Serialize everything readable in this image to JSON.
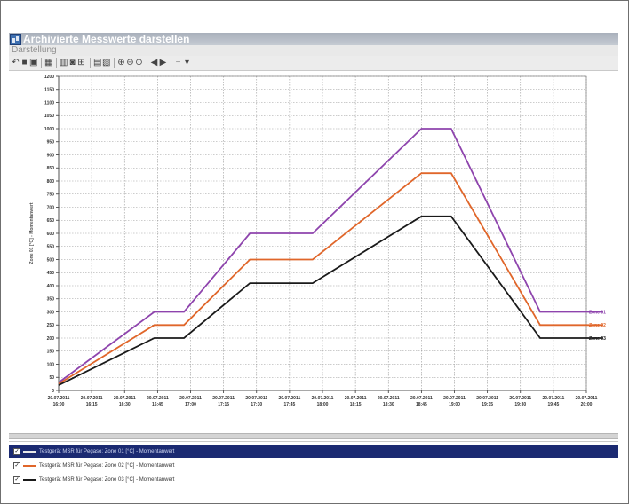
{
  "window": {
    "title": "Archivierte Messwerte darstellen"
  },
  "menu": {
    "items": [
      "Darstellung"
    ]
  },
  "toolbar": {
    "buttons": [
      {
        "icon": "undo-icon"
      },
      {
        "icon": "print-icon"
      },
      {
        "icon": "save-icon"
      },
      {
        "icon": "table-icon"
      },
      {
        "icon": "bar-chart-icon"
      },
      {
        "icon": "options-icon"
      },
      {
        "icon": "ruler-icon"
      },
      {
        "icon": "copy-icon"
      },
      {
        "icon": "columns-icon"
      },
      {
        "icon": "zoom-in-icon"
      },
      {
        "icon": "zoom-out-icon"
      },
      {
        "icon": "zoom-reset-icon"
      },
      {
        "icon": "scroll-left-icon"
      },
      {
        "icon": "scroll-right-icon"
      },
      {
        "icon": "minus-icon"
      },
      {
        "icon": "dropdown-icon"
      }
    ]
  },
  "chart_data": {
    "type": "line",
    "ylabel": "Zone 01 [°C] - Momentanwert",
    "ylim": [
      0,
      1200
    ],
    "yticks": [
      0,
      50,
      100,
      150,
      200,
      250,
      300,
      350,
      400,
      450,
      500,
      550,
      600,
      650,
      700,
      750,
      800,
      850,
      900,
      950,
      1000,
      1050,
      1100,
      1150,
      1200
    ],
    "x_tick_labels": [
      [
        "20.07.2011",
        "16:00"
      ],
      [
        "20.07.2011",
        "16:15"
      ],
      [
        "20.07.2011",
        "16:30"
      ],
      [
        "20.07.2011",
        "16:45"
      ],
      [
        "20.07.2011",
        "17:00"
      ],
      [
        "20.07.2011",
        "17:15"
      ],
      [
        "20.07.2011",
        "17:30"
      ],
      [
        "20.07.2011",
        "17:45"
      ],
      [
        "20.07.2011",
        "18:00"
      ],
      [
        "20.07.2011",
        "18:15"
      ],
      [
        "20.07.2011",
        "18:30"
      ],
      [
        "20.07.2011",
        "18:45"
      ],
      [
        "20.07.2011",
        "19:00"
      ],
      [
        "20.07.2011",
        "19:15"
      ],
      [
        "20.07.2011",
        "19:30"
      ],
      [
        "20.07.2011",
        "19:45"
      ],
      [
        "20.07.2011",
        "20:00"
      ]
    ],
    "grid": true,
    "series": [
      {
        "name": "Zone 01",
        "color": "#8e44ad",
        "x": [
          0,
          2.9,
          3.8,
          5.8,
          7.7,
          11.0,
          11.9,
          14.6,
          16.5
        ],
        "y": [
          30,
          300,
          300,
          600,
          600,
          1000,
          1000,
          300,
          300
        ]
      },
      {
        "name": "Zone 02",
        "color": "#e0662a",
        "x": [
          0,
          2.9,
          3.8,
          5.8,
          7.7,
          11.0,
          11.9,
          14.6,
          16.5
        ],
        "y": [
          25,
          250,
          250,
          500,
          500,
          830,
          830,
          250,
          250
        ]
      },
      {
        "name": "Zone 03",
        "color": "#1a1a1a",
        "x": [
          0,
          2.9,
          3.8,
          5.8,
          7.7,
          11.0,
          11.9,
          14.6,
          16.5
        ],
        "y": [
          20,
          200,
          200,
          410,
          410,
          665,
          665,
          200,
          200
        ]
      }
    ]
  },
  "legend": {
    "items": [
      {
        "label": "Testgerät MSR für Pegaso: Zone 01 [°C] - Momentanwert",
        "color": "#8e44ad",
        "checked": true,
        "selected": true
      },
      {
        "label": "Testgerät MSR für Pegaso: Zone 02 [°C] - Momentanwert",
        "color": "#e0662a",
        "checked": true,
        "selected": false
      },
      {
        "label": "Testgerät MSR für Pegaso: Zone 03 [°C] - Momentanwert",
        "color": "#1a1a1a",
        "checked": true,
        "selected": false
      }
    ]
  }
}
